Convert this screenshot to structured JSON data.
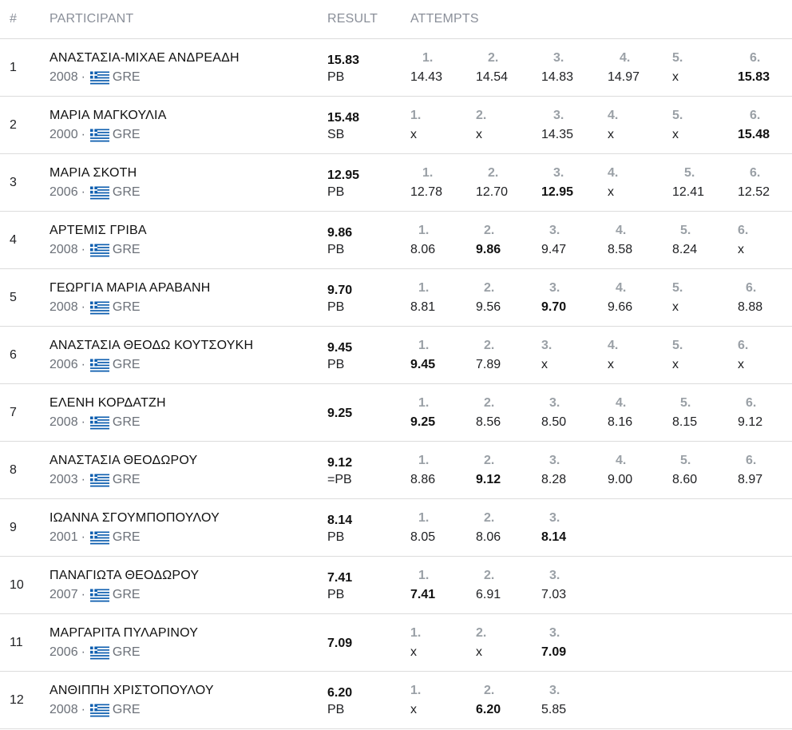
{
  "header": {
    "rank": "#",
    "participant": "PARTICIPANT",
    "result": "RESULT",
    "attempts": "ATTEMPTS"
  },
  "colors": {
    "header_text": "#8a8f99",
    "divider": "#dcdcdc",
    "flag_blue": "#0d5eaf"
  },
  "rows": [
    {
      "rank": "1",
      "name": "ΑΝΑΣΤΑΣΙΑ-ΜΙΧΑΕ ΑΝΔΡΕΑΔΗ",
      "year": "2008",
      "sep": "·",
      "country": "GRE",
      "result": "15.83",
      "note": "PB",
      "attempts": [
        {
          "n": "1.",
          "v": "14.43"
        },
        {
          "n": "2.",
          "v": "14.54"
        },
        {
          "n": "3.",
          "v": "14.83"
        },
        {
          "n": "4.",
          "v": "14.97"
        },
        {
          "n": "5.",
          "v": "x"
        },
        {
          "n": "6.",
          "v": "15.83",
          "best": true
        }
      ]
    },
    {
      "rank": "2",
      "name": "ΜΑΡΙΑ ΜΑΓΚΟΥΛΙΑ",
      "year": "2000",
      "sep": "·",
      "country": "GRE",
      "result": "15.48",
      "note": "SB",
      "attempts": [
        {
          "n": "1.",
          "v": "x"
        },
        {
          "n": "2.",
          "v": "x"
        },
        {
          "n": "3.",
          "v": "14.35"
        },
        {
          "n": "4.",
          "v": "x"
        },
        {
          "n": "5.",
          "v": "x"
        },
        {
          "n": "6.",
          "v": "15.48",
          "best": true
        }
      ]
    },
    {
      "rank": "3",
      "name": "ΜΑΡΙΑ ΣΚΟΤΗ",
      "year": "2006",
      "sep": "·",
      "country": "GRE",
      "result": "12.95",
      "note": "PB",
      "attempts": [
        {
          "n": "1.",
          "v": "12.78"
        },
        {
          "n": "2.",
          "v": "12.70"
        },
        {
          "n": "3.",
          "v": "12.95",
          "best": true
        },
        {
          "n": "4.",
          "v": "x"
        },
        {
          "n": "5.",
          "v": "12.41"
        },
        {
          "n": "6.",
          "v": "12.52"
        }
      ]
    },
    {
      "rank": "4",
      "name": "ΑΡΤΕΜΙΣ ΓΡΙΒΑ",
      "year": "2008",
      "sep": "·",
      "country": "GRE",
      "result": "9.86",
      "note": "PB",
      "attempts": [
        {
          "n": "1.",
          "v": "8.06"
        },
        {
          "n": "2.",
          "v": "9.86",
          "best": true
        },
        {
          "n": "3.",
          "v": "9.47"
        },
        {
          "n": "4.",
          "v": "8.58"
        },
        {
          "n": "5.",
          "v": "8.24"
        },
        {
          "n": "6.",
          "v": "x"
        }
      ]
    },
    {
      "rank": "5",
      "name": "ΓΕΩΡΓΙΑ ΜΑΡΙΑ ΑΡΑΒΑΝΗ",
      "year": "2008",
      "sep": "·",
      "country": "GRE",
      "result": "9.70",
      "note": "PB",
      "attempts": [
        {
          "n": "1.",
          "v": "8.81"
        },
        {
          "n": "2.",
          "v": "9.56"
        },
        {
          "n": "3.",
          "v": "9.70",
          "best": true
        },
        {
          "n": "4.",
          "v": "9.66"
        },
        {
          "n": "5.",
          "v": "x"
        },
        {
          "n": "6.",
          "v": "8.88"
        }
      ]
    },
    {
      "rank": "6",
      "name": "ΑΝΑΣΤΑΣΙΑ ΘΕΟΔΩ ΚΟΥΤΣΟΥΚΗ",
      "year": "2006",
      "sep": "·",
      "country": "GRE",
      "result": "9.45",
      "note": "PB",
      "attempts": [
        {
          "n": "1.",
          "v": "9.45",
          "best": true
        },
        {
          "n": "2.",
          "v": "7.89"
        },
        {
          "n": "3.",
          "v": "x"
        },
        {
          "n": "4.",
          "v": "x"
        },
        {
          "n": "5.",
          "v": "x"
        },
        {
          "n": "6.",
          "v": "x"
        }
      ]
    },
    {
      "rank": "7",
      "name": "ΕΛΕΝΗ ΚΟΡΔΑΤΖΗ",
      "year": "2008",
      "sep": "·",
      "country": "GRE",
      "result": "9.25",
      "note": "",
      "attempts": [
        {
          "n": "1.",
          "v": "9.25",
          "best": true
        },
        {
          "n": "2.",
          "v": "8.56"
        },
        {
          "n": "3.",
          "v": "8.50"
        },
        {
          "n": "4.",
          "v": "8.16"
        },
        {
          "n": "5.",
          "v": "8.15"
        },
        {
          "n": "6.",
          "v": "9.12"
        }
      ]
    },
    {
      "rank": "8",
      "name": "ΑΝΑΣΤΑΣΙΑ ΘΕΟΔΩΡΟΥ",
      "year": "2003",
      "sep": "·",
      "country": "GRE",
      "result": "9.12",
      "note": "=PB",
      "attempts": [
        {
          "n": "1.",
          "v": "8.86"
        },
        {
          "n": "2.",
          "v": "9.12",
          "best": true
        },
        {
          "n": "3.",
          "v": "8.28"
        },
        {
          "n": "4.",
          "v": "9.00"
        },
        {
          "n": "5.",
          "v": "8.60"
        },
        {
          "n": "6.",
          "v": "8.97"
        }
      ]
    },
    {
      "rank": "9",
      "name": "ΙΩΑΝΝΑ ΣΓΟΥΜΠΟΠΟΥΛΟΥ",
      "year": "2001",
      "sep": "·",
      "country": "GRE",
      "result": "8.14",
      "note": "PB",
      "attempts": [
        {
          "n": "1.",
          "v": "8.05"
        },
        {
          "n": "2.",
          "v": "8.06"
        },
        {
          "n": "3.",
          "v": "8.14",
          "best": true
        }
      ]
    },
    {
      "rank": "10",
      "name": "ΠΑΝΑΓΙΩΤΑ ΘΕΟΔΩΡΟΥ",
      "year": "2007",
      "sep": "·",
      "country": "GRE",
      "result": "7.41",
      "note": "PB",
      "attempts": [
        {
          "n": "1.",
          "v": "7.41",
          "best": true
        },
        {
          "n": "2.",
          "v": "6.91"
        },
        {
          "n": "3.",
          "v": "7.03"
        }
      ]
    },
    {
      "rank": "11",
      "name": "ΜΑΡΓΑΡΙΤΑ ΠΥΛΑΡΙΝΟΥ",
      "year": "2006",
      "sep": "·",
      "country": "GRE",
      "result": "7.09",
      "note": "",
      "attempts": [
        {
          "n": "1.",
          "v": "x"
        },
        {
          "n": "2.",
          "v": "x"
        },
        {
          "n": "3.",
          "v": "7.09",
          "best": true
        }
      ]
    },
    {
      "rank": "12",
      "name": "ΑΝΘΙΠΠΗ ΧΡΙΣΤΟΠΟΥΛΟΥ",
      "year": "2008",
      "sep": "·",
      "country": "GRE",
      "result": "6.20",
      "note": "PB",
      "attempts": [
        {
          "n": "1.",
          "v": "x"
        },
        {
          "n": "2.",
          "v": "6.20",
          "best": true
        },
        {
          "n": "3.",
          "v": "5.85"
        }
      ]
    }
  ]
}
